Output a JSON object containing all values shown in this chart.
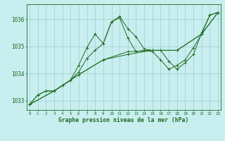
{
  "xlabel": "Graphe pression niveau de la mer (hPa)",
  "x_ticks": [
    0,
    1,
    2,
    3,
    4,
    5,
    6,
    7,
    8,
    9,
    10,
    11,
    12,
    13,
    14,
    15,
    16,
    17,
    18,
    19,
    20,
    21,
    22,
    23
  ],
  "ylim": [
    1032.65,
    1036.55
  ],
  "yticks": [
    1033,
    1034,
    1035,
    1036
  ],
  "background_color": "#c8eef0",
  "grid_color": "#a0cccc",
  "line_color": "#1e6b1e",
  "series": [
    {
      "x": [
        0,
        1,
        2,
        3,
        4,
        5,
        6,
        7,
        8,
        9,
        10,
        11,
        12,
        13,
        14,
        15,
        16,
        17,
        18,
        19,
        20,
        21,
        22,
        23
      ],
      "y": [
        1032.85,
        1033.2,
        1033.35,
        1033.35,
        1033.55,
        1033.75,
        1034.3,
        1034.95,
        1035.45,
        1035.1,
        1035.9,
        1036.1,
        1035.65,
        1035.35,
        1034.9,
        1034.85,
        1034.85,
        1034.45,
        1034.15,
        1034.4,
        1034.7,
        1035.5,
        1036.15,
        1036.25
      ]
    },
    {
      "x": [
        0,
        1,
        2,
        3,
        4,
        5,
        6,
        7,
        8,
        9,
        10,
        11,
        12,
        13,
        14,
        15,
        16,
        17,
        18,
        19,
        20,
        21,
        22,
        23
      ],
      "y": [
        1032.85,
        1033.2,
        1033.35,
        1033.35,
        1033.55,
        1033.75,
        1034.05,
        1034.55,
        1034.85,
        1035.1,
        1035.9,
        1036.05,
        1035.3,
        1034.8,
        1034.85,
        1034.8,
        1034.5,
        1034.15,
        1034.3,
        1034.5,
        1034.95,
        1035.45,
        1036.15,
        1036.25
      ]
    },
    {
      "x": [
        0,
        3,
        6,
        9,
        12,
        15,
        18,
        21,
        23
      ],
      "y": [
        1032.85,
        1033.35,
        1033.95,
        1034.5,
        1034.8,
        1034.85,
        1034.85,
        1035.45,
        1036.25
      ]
    },
    {
      "x": [
        0,
        3,
        6,
        9,
        12,
        15,
        18,
        21,
        23
      ],
      "y": [
        1032.85,
        1033.35,
        1033.95,
        1034.5,
        1034.7,
        1034.85,
        1034.85,
        1035.45,
        1036.25
      ]
    }
  ]
}
